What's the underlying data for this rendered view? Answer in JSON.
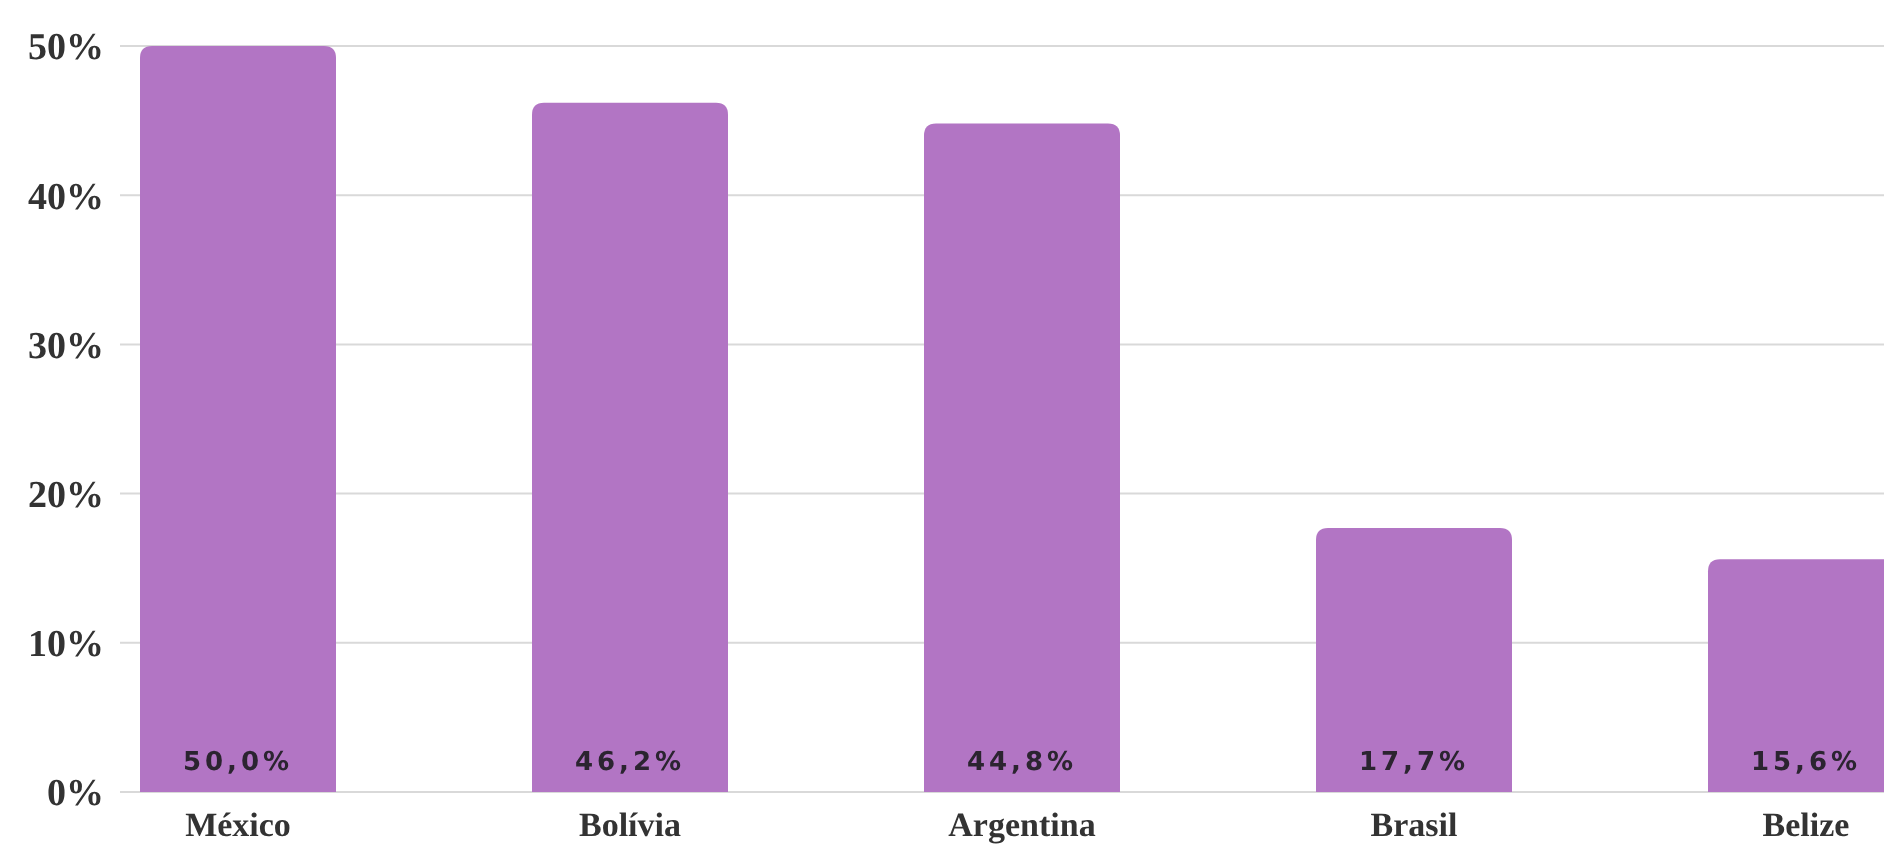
{
  "chart_data": {
    "type": "bar",
    "categories": [
      "México",
      "Bolívia",
      "Argentina",
      "Brasil",
      "Belize"
    ],
    "values": [
      50.0,
      46.2,
      44.8,
      17.7,
      15.6
    ],
    "value_labels": [
      "50,0%",
      "46,2%",
      "44,8%",
      "17,7%",
      "15,6%"
    ],
    "color": "#b275c4",
    "ylim": [
      0,
      50
    ],
    "yticks": [
      {
        "value": 0,
        "label": "0%"
      },
      {
        "value": 10,
        "label": "10%"
      },
      {
        "value": 20,
        "label": "20%"
      },
      {
        "value": 30,
        "label": "30%"
      },
      {
        "value": 40,
        "label": "40%"
      },
      {
        "value": 50,
        "label": "50%"
      }
    ],
    "grid": "y"
  }
}
